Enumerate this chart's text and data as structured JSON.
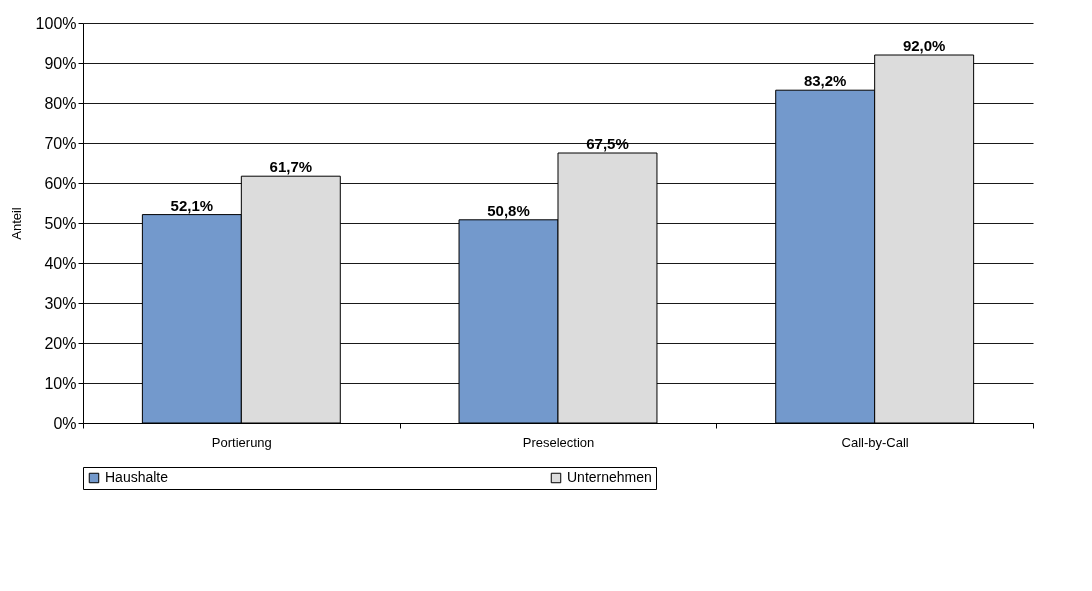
{
  "chart_data": {
    "type": "bar",
    "ylabel": "Anteil",
    "categories": [
      "Portierung",
      "Preselection",
      "Call-by-Call"
    ],
    "series": [
      {
        "name": "Haushalte",
        "color": "#7399cc",
        "values": [
          52.1,
          50.8,
          83.2
        ],
        "value_labels": [
          "52,1%",
          "50,8%",
          "83,2%"
        ]
      },
      {
        "name": "Unternehmen",
        "color": "#dcdcdc",
        "values": [
          61.7,
          67.5,
          92.0
        ],
        "value_labels": [
          "61,7%",
          "67,5%",
          "92,0%"
        ]
      }
    ],
    "ylim": [
      0,
      100
    ],
    "yticks": [
      {
        "value": 0,
        "label": "0%"
      },
      {
        "value": 10,
        "label": "10%"
      },
      {
        "value": 20,
        "label": "20%"
      },
      {
        "value": 30,
        "label": "30%"
      },
      {
        "value": 40,
        "label": "40%"
      },
      {
        "value": 50,
        "label": "50%"
      },
      {
        "value": 60,
        "label": "60%"
      },
      {
        "value": 70,
        "label": "70%"
      },
      {
        "value": 80,
        "label": "80%"
      },
      {
        "value": 90,
        "label": "90%"
      },
      {
        "value": 100,
        "label": "100%"
      }
    ],
    "grid": "y",
    "legend": "bottom"
  }
}
